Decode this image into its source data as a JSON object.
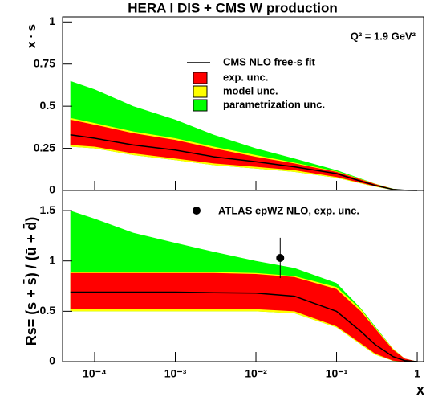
{
  "chart_data": [
    {
      "type": "band",
      "title": "HERA I DIS + CMS W production",
      "annotation": "Q² = 1.9 GeV²",
      "ylabel": "x · s",
      "xscale": "log",
      "xlim": [
        4e-05,
        1.2
      ],
      "xticks": [
        {
          "value": 0.0001,
          "label": "10⁻⁴"
        },
        {
          "value": 0.001,
          "label": "10⁻³"
        },
        {
          "value": 0.01,
          "label": "10⁻²"
        },
        {
          "value": 0.1,
          "label": "10⁻¹"
        }
      ],
      "ylim": [
        0,
        1.03
      ],
      "yticks": [
        0,
        0.25,
        0.5,
        0.75,
        1
      ],
      "yticklabels": [
        "0",
        "0.25",
        "0.5",
        "0.75",
        "1"
      ],
      "x": [
        5e-05,
        0.0001,
        0.0003,
        0.001,
        0.003,
        0.01,
        0.03,
        0.1,
        0.2,
        0.3,
        0.5,
        0.7,
        1
      ],
      "series": [
        {
          "name": "parametrization unc.",
          "color": "#00ff00",
          "upper": [
            0.65,
            0.6,
            0.5,
            0.42,
            0.33,
            0.25,
            0.19,
            0.12,
            0.07,
            0.04,
            0.01,
            0.003,
            0
          ],
          "lower": [
            0.26,
            0.25,
            0.21,
            0.18,
            0.15,
            0.13,
            0.11,
            0.075,
            0.042,
            0.023,
            0.003,
            0.001,
            0
          ]
        },
        {
          "name": "model unc.",
          "color": "#ffff00",
          "upper": [
            0.43,
            0.4,
            0.35,
            0.31,
            0.26,
            0.21,
            0.165,
            0.113,
            0.067,
            0.039,
            0.01,
            0.002,
            0
          ],
          "lower": [
            0.26,
            0.25,
            0.21,
            0.18,
            0.15,
            0.13,
            0.11,
            0.075,
            0.042,
            0.023,
            0.003,
            0.001,
            0
          ]
        },
        {
          "name": "exp. unc.",
          "color": "#ff0000",
          "upper": [
            0.42,
            0.39,
            0.34,
            0.3,
            0.25,
            0.2,
            0.16,
            0.11,
            0.065,
            0.038,
            0.009,
            0.002,
            0
          ],
          "lower": [
            0.27,
            0.26,
            0.22,
            0.19,
            0.16,
            0.14,
            0.12,
            0.08,
            0.045,
            0.025,
            0.004,
            0.001,
            0
          ]
        }
      ],
      "line": {
        "name": "CMS NLO free-s fit",
        "color": "#000000",
        "values": [
          0.33,
          0.31,
          0.27,
          0.24,
          0.2,
          0.17,
          0.14,
          0.1,
          0.055,
          0.03,
          0.006,
          0.001,
          0
        ]
      }
    },
    {
      "type": "band",
      "ylabel": "Rs= (s + s̄) / (ū + d̄)",
      "xlabel": "x",
      "xscale": "log",
      "xlim": [
        4e-05,
        1.2
      ],
      "xticks": [
        {
          "value": 0.0001,
          "label": "10⁻⁴"
        },
        {
          "value": 0.001,
          "label": "10⁻³"
        },
        {
          "value": 0.01,
          "label": "10⁻²"
        },
        {
          "value": 0.1,
          "label": "10⁻¹"
        },
        1
      ],
      "ylim": [
        0,
        1.7
      ],
      "yticks": [
        0,
        0.5,
        1,
        1.5
      ],
      "x": [
        5e-05,
        0.0001,
        0.0003,
        0.001,
        0.003,
        0.01,
        0.03,
        0.1,
        0.2,
        0.3,
        0.5,
        0.7,
        1
      ],
      "series": [
        {
          "color": "#00ff00",
          "upper": [
            1.5,
            1.42,
            1.28,
            1.18,
            1.09,
            1.0,
            0.93,
            0.78,
            0.53,
            0.35,
            0.13,
            0.03,
            0
          ],
          "lower": [
            0.5,
            0.5,
            0.5,
            0.5,
            0.5,
            0.5,
            0.48,
            0.34,
            0.17,
            0.07,
            0.008,
            0,
            0
          ]
        },
        {
          "color": "#ffff00",
          "upper": [
            0.89,
            0.89,
            0.89,
            0.89,
            0.89,
            0.88,
            0.85,
            0.74,
            0.52,
            0.34,
            0.13,
            0.03,
            0
          ],
          "lower": [
            0.5,
            0.5,
            0.5,
            0.5,
            0.5,
            0.5,
            0.48,
            0.34,
            0.17,
            0.07,
            0.008,
            0,
            0
          ]
        },
        {
          "color": "#ff0000",
          "upper": [
            0.88,
            0.88,
            0.88,
            0.88,
            0.88,
            0.87,
            0.84,
            0.72,
            0.5,
            0.33,
            0.12,
            0.03,
            0
          ],
          "lower": [
            0.52,
            0.52,
            0.52,
            0.52,
            0.52,
            0.52,
            0.5,
            0.35,
            0.18,
            0.08,
            0.01,
            0,
            0
          ]
        }
      ],
      "line": {
        "color": "#000000",
        "values": [
          0.69,
          0.69,
          0.69,
          0.69,
          0.685,
          0.68,
          0.65,
          0.5,
          0.3,
          0.17,
          0.05,
          0.01,
          0
        ]
      },
      "points": {
        "name": "ATLAS epWZ NLO, exp. unc.",
        "color": "#000000",
        "x": [
          0.02
        ],
        "values": [
          1.03
        ],
        "errors": [
          0.2
        ]
      }
    }
  ]
}
